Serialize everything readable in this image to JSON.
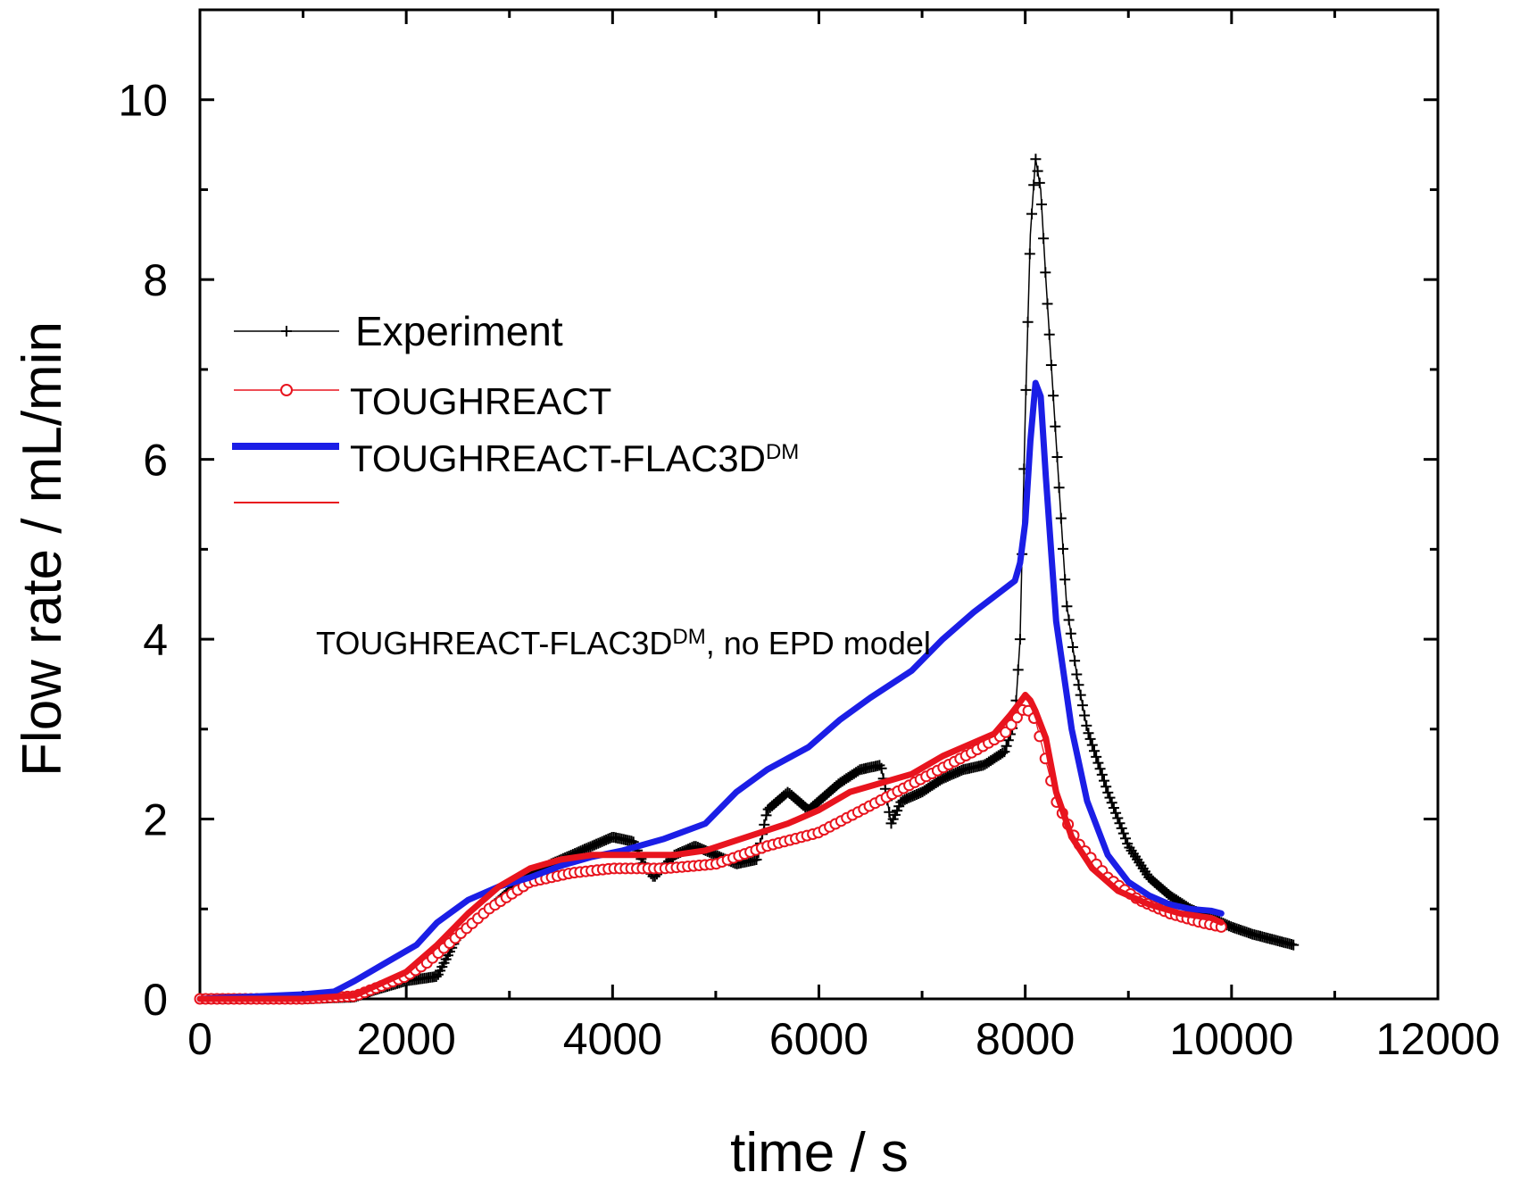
{
  "chart_data": {
    "type": "line",
    "xlabel": "time / s",
    "ylabel": "Flow rate / mL/min",
    "xlim": [
      0,
      12000
    ],
    "ylim": [
      0,
      11
    ],
    "xticks": [
      "0",
      "2000",
      "4000",
      "6000",
      "8000",
      "10000",
      "12000"
    ],
    "yticks": [
      "0",
      "2",
      "4",
      "6",
      "8",
      "10"
    ],
    "legend_position": "upper-left",
    "series": [
      {
        "name": "Experiment",
        "color": "#000000",
        "marker": "plus",
        "x": [
          0,
          1000,
          1500,
          1700,
          2000,
          2300,
          2500,
          2800,
          3100,
          3400,
          3700,
          4000,
          4200,
          4300,
          4400,
          4600,
          4800,
          5000,
          5200,
          5400,
          5500,
          5700,
          5900,
          6000,
          6200,
          6400,
          6600,
          6650,
          6700,
          6800,
          7000,
          7200,
          7400,
          7600,
          7800,
          7900,
          7950,
          8000,
          8050,
          8100,
          8150,
          8200,
          8300,
          8400,
          8500,
          8600,
          8800,
          9000,
          9200,
          9400,
          9600,
          9800,
          10000,
          10200,
          10400,
          10600
        ],
        "y": [
          0.0,
          0.0,
          0.02,
          0.1,
          0.2,
          0.25,
          0.7,
          1.0,
          1.3,
          1.5,
          1.65,
          1.8,
          1.75,
          1.5,
          1.35,
          1.6,
          1.7,
          1.6,
          1.5,
          1.55,
          2.1,
          2.3,
          2.1,
          2.2,
          2.4,
          2.55,
          2.6,
          2.3,
          1.95,
          2.2,
          2.3,
          2.45,
          2.55,
          2.6,
          2.75,
          3.1,
          4.0,
          6.5,
          8.5,
          9.35,
          9.0,
          8.0,
          6.2,
          4.4,
          3.6,
          3.0,
          2.3,
          1.7,
          1.35,
          1.15,
          1.0,
          0.9,
          0.8,
          0.72,
          0.66,
          0.6
        ]
      },
      {
        "name": "TOUGHREACT",
        "color": "#e8141e",
        "marker": "circle",
        "x": [
          0,
          1000,
          1500,
          2000,
          2200,
          2500,
          2800,
          3200,
          3600,
          4000,
          4500,
          5000,
          5500,
          6000,
          6500,
          7000,
          7500,
          7800,
          8000,
          8100,
          8300,
          8500,
          8800,
          9100,
          9400,
          9700,
          9900
        ],
        "y": [
          0.0,
          0.0,
          0.03,
          0.25,
          0.4,
          0.7,
          1.0,
          1.3,
          1.4,
          1.45,
          1.45,
          1.5,
          1.7,
          1.85,
          2.15,
          2.45,
          2.75,
          2.95,
          3.25,
          3.1,
          2.2,
          1.75,
          1.35,
          1.1,
          0.95,
          0.85,
          0.8
        ]
      },
      {
        "name": "TOUGHREACT-FLAC3D",
        "name_superscript": "DM",
        "color": "#1b1ee6",
        "marker": "none",
        "x": [
          0,
          1000,
          1300,
          1500,
          1800,
          2100,
          2300,
          2600,
          2900,
          3200,
          3500,
          3800,
          4100,
          4500,
          4900,
          5200,
          5500,
          5900,
          6200,
          6500,
          6900,
          7200,
          7500,
          7900,
          7950,
          8000,
          8050,
          8100,
          8150,
          8200,
          8300,
          8450,
          8600,
          8800,
          9000,
          9200,
          9400,
          9600,
          9800,
          9900
        ],
        "y": [
          0.0,
          0.05,
          0.08,
          0.2,
          0.4,
          0.6,
          0.85,
          1.1,
          1.25,
          1.35,
          1.48,
          1.58,
          1.65,
          1.78,
          1.95,
          2.3,
          2.55,
          2.8,
          3.1,
          3.35,
          3.65,
          4.0,
          4.3,
          4.65,
          4.85,
          5.3,
          6.2,
          6.85,
          6.7,
          5.8,
          4.2,
          3.0,
          2.2,
          1.6,
          1.3,
          1.15,
          1.05,
          1.0,
          0.98,
          0.95
        ]
      },
      {
        "name": "TOUGHREACT-FLAC3D",
        "name_superscript": "DM",
        "name_suffix": ", no EPD model",
        "color": "#e8141e",
        "marker": "none",
        "x": [
          0,
          1000,
          1500,
          2000,
          2300,
          2600,
          2900,
          3200,
          3500,
          3800,
          4200,
          4600,
          4900,
          5300,
          5700,
          6000,
          6300,
          6600,
          6900,
          7200,
          7500,
          7700,
          7850,
          7950,
          8000,
          8050,
          8100,
          8200,
          8300,
          8450,
          8650,
          8900,
          9200,
          9500,
          9800,
          9900
        ],
        "y": [
          0.0,
          0.0,
          0.04,
          0.3,
          0.6,
          0.95,
          1.25,
          1.45,
          1.55,
          1.6,
          1.6,
          1.6,
          1.65,
          1.8,
          1.95,
          2.1,
          2.3,
          2.4,
          2.5,
          2.7,
          2.85,
          2.95,
          3.15,
          3.3,
          3.38,
          3.32,
          3.2,
          2.9,
          2.3,
          1.8,
          1.45,
          1.2,
          1.05,
          0.95,
          0.9,
          0.85
        ]
      }
    ],
    "legend": [
      {
        "label": "Experiment"
      },
      {
        "label": "TOUGHREACT"
      },
      {
        "label": "TOUGHREACT-FLAC3D",
        "sup": "DM"
      },
      {
        "label": ""
      }
    ],
    "annotation": {
      "text_before": "TOUGHREACT-FLAC3D",
      "sup": "DM",
      "text_after": ", no EPD model"
    }
  }
}
